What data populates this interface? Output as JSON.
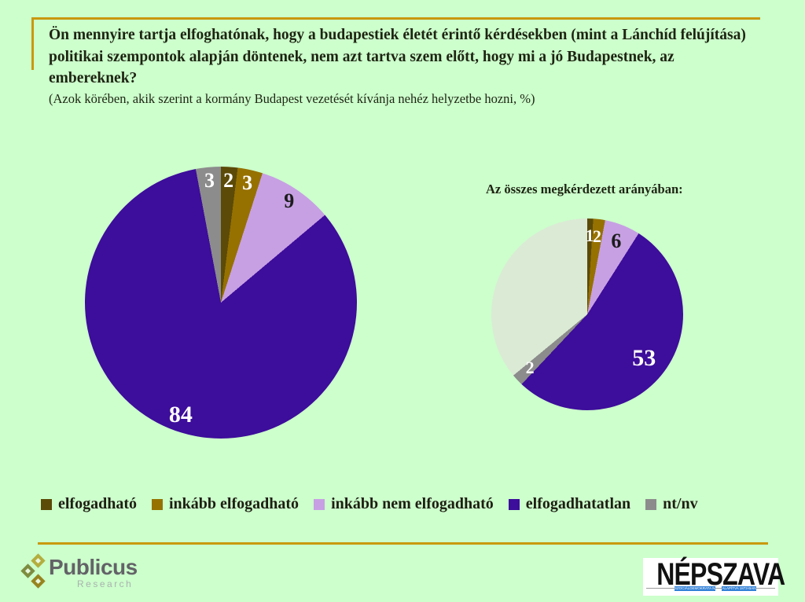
{
  "background": "#ccffcc",
  "accent_color": "#c9980e",
  "header": {
    "title": "Ön mennyire tartja elfoghatónak, hogy a budapestiek életét érintő kérdésekben (mint a Lánchíd felújítása) politikai szempontok alapján döntenek, nem azt tartva szem előtt, hogy mi a jó Budapestnek, az embereknek?",
    "subtitle": "(Azok körében, akik szerint a kormány Budapest vezetését kívánja nehéz helyzetbe hozni, %)"
  },
  "chart_data": [
    {
      "type": "pie",
      "title": "",
      "categories": [
        "elfogadható",
        "inkább elfogadható",
        "inkább nem elfogadható",
        "elfogadhatatlan",
        "nt/nv"
      ],
      "values": [
        2,
        3,
        9,
        84,
        3
      ],
      "colors": [
        "#5c4a08",
        "#967100",
        "#c7a0e3",
        "#3d0d9b",
        "#8c8c8c"
      ],
      "label_colors": [
        "#ffffff",
        "#ffffff",
        "#1c1c1c",
        "#ffffff",
        "#ffffff"
      ],
      "start_angle_deg": 0,
      "direction": "clockwise",
      "legend_position": "bottom"
    },
    {
      "type": "pie",
      "title": "Az összes megkérdezett arányában:",
      "categories": [
        "elfogadható",
        "inkább elfogadható",
        "inkább nem elfogadható",
        "elfogadhatatlan",
        "nt/nv",
        ""
      ],
      "values": [
        1,
        2,
        6,
        53,
        2,
        36
      ],
      "colors": [
        "#5c4a08",
        "#967100",
        "#c7a0e3",
        "#3d0d9b",
        "#8c8c8c",
        "#dbead5"
      ],
      "label_colors": [
        "#ffffff",
        "#ffffff",
        "#1c1c1c",
        "#ffffff",
        "#ffffff",
        ""
      ],
      "start_angle_deg": 0,
      "direction": "clockwise",
      "legend_position": "none"
    }
  ],
  "legend": {
    "items": [
      {
        "label": "elfogadható",
        "color": "#5c4a08"
      },
      {
        "label": "inkább elfogadható",
        "color": "#967100"
      },
      {
        "label": "inkább nem elfogadható",
        "color": "#c7a0e3"
      },
      {
        "label": "elfogadhatatlan",
        "color": "#3d0d9b"
      },
      {
        "label": "nt/nv",
        "color": "#8c8c8c"
      }
    ]
  },
  "footer": {
    "publicus": {
      "name": "Publicus",
      "sub": "Research"
    },
    "nepszava": {
      "name": "NÉPSZAVA",
      "tag1": "SZOCIÁLDEMOKRATA NAPILAP",
      "tag2": "ALAPÍTVA 1873-BAN"
    }
  }
}
